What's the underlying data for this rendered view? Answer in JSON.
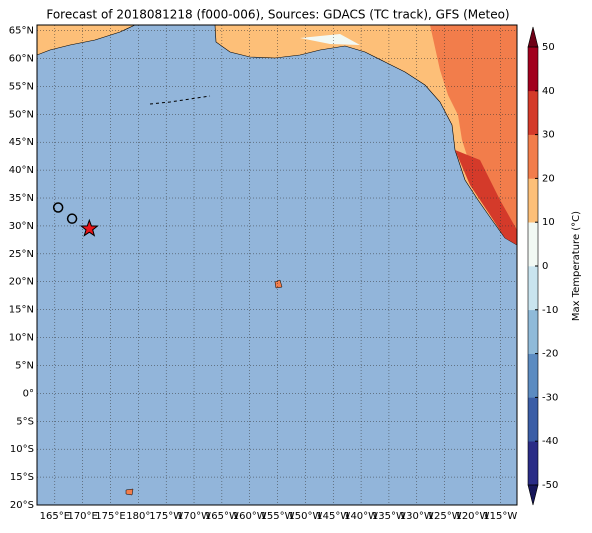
{
  "title": "Forecast of 2018081218 (f000-006), Sources: GDACS (TC track), GFS (Meteo)",
  "map": {
    "xlim": [
      161.8,
      248.0
    ],
    "ylim": [
      -20,
      66
    ],
    "ocean_color": "#92b5da",
    "yticks": [
      {
        "value": 65,
        "label": "65°N"
      },
      {
        "value": 60,
        "label": "60°N"
      },
      {
        "value": 55,
        "label": "55°N"
      },
      {
        "value": 50,
        "label": "50°N"
      },
      {
        "value": 45,
        "label": "45°N"
      },
      {
        "value": 40,
        "label": "40°N"
      },
      {
        "value": 35,
        "label": "35°N"
      },
      {
        "value": 30,
        "label": "30°N"
      },
      {
        "value": 25,
        "label": "25°N"
      },
      {
        "value": 20,
        "label": "20°N"
      },
      {
        "value": 15,
        "label": "15°N"
      },
      {
        "value": 10,
        "label": "10°N"
      },
      {
        "value": 5,
        "label": "5°N"
      },
      {
        "value": 0,
        "label": "0°"
      },
      {
        "value": -5,
        "label": "5°S"
      },
      {
        "value": -10,
        "label": "10°S"
      },
      {
        "value": -15,
        "label": "15°S"
      },
      {
        "value": -20,
        "label": "20°S"
      }
    ],
    "xticks": [
      {
        "value": 165,
        "label": "165°E"
      },
      {
        "value": 170,
        "label": "170°E"
      },
      {
        "value": 175,
        "label": "175°E"
      },
      {
        "value": 180,
        "label": "180°"
      },
      {
        "value": 185,
        "label": "175°W"
      },
      {
        "value": 190,
        "label": "170°W"
      },
      {
        "value": 195,
        "label": "165°W"
      },
      {
        "value": 200,
        "label": "160°W"
      },
      {
        "value": 205,
        "label": "155°W"
      },
      {
        "value": 210,
        "label": "150°W"
      },
      {
        "value": 215,
        "label": "145°W"
      },
      {
        "value": 220,
        "label": "140°W"
      },
      {
        "value": 225,
        "label": "135°W"
      },
      {
        "value": 230,
        "label": "130°W"
      },
      {
        "value": 235,
        "label": "125°W"
      },
      {
        "value": 240,
        "label": "120°W"
      },
      {
        "value": 245,
        "label": "115°W"
      }
    ],
    "track": [
      {
        "lon": 165.6,
        "lat": 33.3,
        "marker": "circle"
      },
      {
        "lon": 168.1,
        "lat": 31.3,
        "marker": "circle"
      },
      {
        "lon": 171.2,
        "lat": 29.5,
        "marker": "star"
      }
    ]
  },
  "colorbar": {
    "label": "Max Temperature (°C)",
    "lim": [
      -50,
      50
    ],
    "ticks": [
      -50,
      -40,
      -30,
      -20,
      -10,
      0,
      10,
      20,
      30,
      40,
      50
    ],
    "colors": [
      "#2a2c86",
      "#3a5da6",
      "#5b8bc1",
      "#8fbad9",
      "#c9e4ef",
      "#f2f9f4",
      "#fdbf78",
      "#f27d4b",
      "#d43a2a",
      "#a2001e"
    ],
    "under": "#17175a",
    "over": "#6e0016"
  }
}
